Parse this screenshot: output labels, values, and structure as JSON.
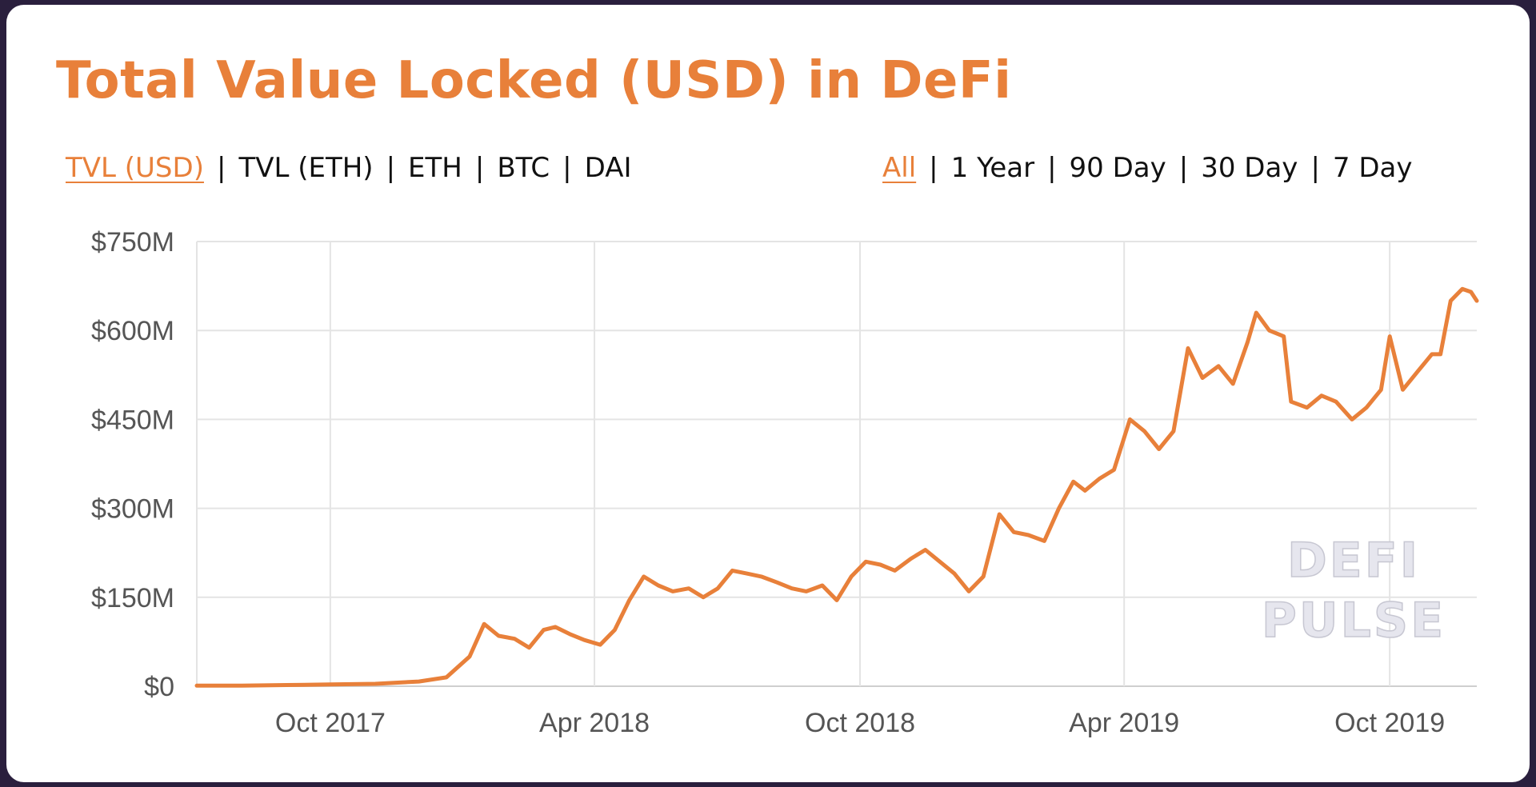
{
  "chart_data": {
    "type": "line",
    "title": "Total Value Locked (USD) in DeFi",
    "metric_tabs": [
      {
        "label": "TVL (USD)",
        "active": true
      },
      {
        "label": "TVL (ETH)",
        "active": false
      },
      {
        "label": "ETH",
        "active": false
      },
      {
        "label": "BTC",
        "active": false
      },
      {
        "label": "DAI",
        "active": false
      }
    ],
    "range_tabs": [
      {
        "label": "All",
        "active": true
      },
      {
        "label": "1 Year",
        "active": false
      },
      {
        "label": "90 Day",
        "active": false
      },
      {
        "label": "30 Day",
        "active": false
      },
      {
        "label": "7 Day",
        "active": false
      }
    ],
    "y_tick_labels": [
      "$0",
      "$150M",
      "$300M",
      "$450M",
      "$600M",
      "$750M"
    ],
    "x_tick_labels": [
      "Oct 2017",
      "Apr 2018",
      "Oct 2018",
      "Apr 2019",
      "Oct 2019"
    ],
    "ylim": [
      0,
      750
    ],
    "y_unit": "USD millions",
    "xlim": [
      "2017-07-01",
      "2019-11-30"
    ],
    "grid": true,
    "watermark": [
      "DEFI",
      "PULSE"
    ],
    "colors": {
      "line": "#e8803a",
      "title": "#e8803a",
      "grid": "#e4e4e4",
      "axis": "#d0d0d0"
    },
    "series": [
      {
        "points": [
          [
            "2017-07-01",
            1
          ],
          [
            "2017-08-01",
            1
          ],
          [
            "2017-09-01",
            2
          ],
          [
            "2017-10-01",
            3
          ],
          [
            "2017-11-01",
            4
          ],
          [
            "2017-12-01",
            8
          ],
          [
            "2017-12-20",
            15
          ],
          [
            "2018-01-05",
            50
          ],
          [
            "2018-01-15",
            105
          ],
          [
            "2018-01-25",
            85
          ],
          [
            "2018-02-05",
            80
          ],
          [
            "2018-02-15",
            65
          ],
          [
            "2018-02-25",
            95
          ],
          [
            "2018-03-05",
            100
          ],
          [
            "2018-03-15",
            88
          ],
          [
            "2018-03-25",
            78
          ],
          [
            "2018-04-05",
            70
          ],
          [
            "2018-04-15",
            95
          ],
          [
            "2018-04-25",
            145
          ],
          [
            "2018-05-05",
            185
          ],
          [
            "2018-05-15",
            170
          ],
          [
            "2018-05-25",
            160
          ],
          [
            "2018-06-05",
            165
          ],
          [
            "2018-06-15",
            150
          ],
          [
            "2018-06-25",
            165
          ],
          [
            "2018-07-05",
            195
          ],
          [
            "2018-07-15",
            190
          ],
          [
            "2018-07-25",
            185
          ],
          [
            "2018-08-05",
            175
          ],
          [
            "2018-08-15",
            165
          ],
          [
            "2018-08-25",
            160
          ],
          [
            "2018-09-05",
            170
          ],
          [
            "2018-09-15",
            145
          ],
          [
            "2018-09-25",
            185
          ],
          [
            "2018-10-05",
            210
          ],
          [
            "2018-10-15",
            205
          ],
          [
            "2018-10-25",
            195
          ],
          [
            "2018-11-05",
            215
          ],
          [
            "2018-11-15",
            230
          ],
          [
            "2018-11-25",
            210
          ],
          [
            "2018-12-05",
            190
          ],
          [
            "2018-12-15",
            160
          ],
          [
            "2018-12-25",
            185
          ],
          [
            "2019-01-05",
            290
          ],
          [
            "2019-01-15",
            260
          ],
          [
            "2019-01-25",
            255
          ],
          [
            "2019-02-05",
            245
          ],
          [
            "2019-02-15",
            300
          ],
          [
            "2019-02-25",
            345
          ],
          [
            "2019-03-05",
            330
          ],
          [
            "2019-03-15",
            350
          ],
          [
            "2019-03-25",
            365
          ],
          [
            "2019-04-05",
            450
          ],
          [
            "2019-04-15",
            430
          ],
          [
            "2019-04-25",
            400
          ],
          [
            "2019-05-05",
            430
          ],
          [
            "2019-05-15",
            570
          ],
          [
            "2019-05-25",
            520
          ],
          [
            "2019-06-05",
            540
          ],
          [
            "2019-06-15",
            510
          ],
          [
            "2019-06-25",
            580
          ],
          [
            "2019-07-01",
            630
          ],
          [
            "2019-07-10",
            600
          ],
          [
            "2019-07-20",
            590
          ],
          [
            "2019-07-25",
            480
          ],
          [
            "2019-08-05",
            470
          ],
          [
            "2019-08-15",
            490
          ],
          [
            "2019-08-25",
            480
          ],
          [
            "2019-09-05",
            450
          ],
          [
            "2019-09-15",
            470
          ],
          [
            "2019-09-25",
            500
          ],
          [
            "2019-10-01",
            590
          ],
          [
            "2019-10-10",
            500
          ],
          [
            "2019-10-20",
            530
          ],
          [
            "2019-10-30",
            560
          ],
          [
            "2019-11-05",
            560
          ],
          [
            "2019-11-12",
            650
          ],
          [
            "2019-11-20",
            670
          ],
          [
            "2019-11-26",
            665
          ],
          [
            "2019-11-30",
            650
          ]
        ]
      }
    ]
  }
}
